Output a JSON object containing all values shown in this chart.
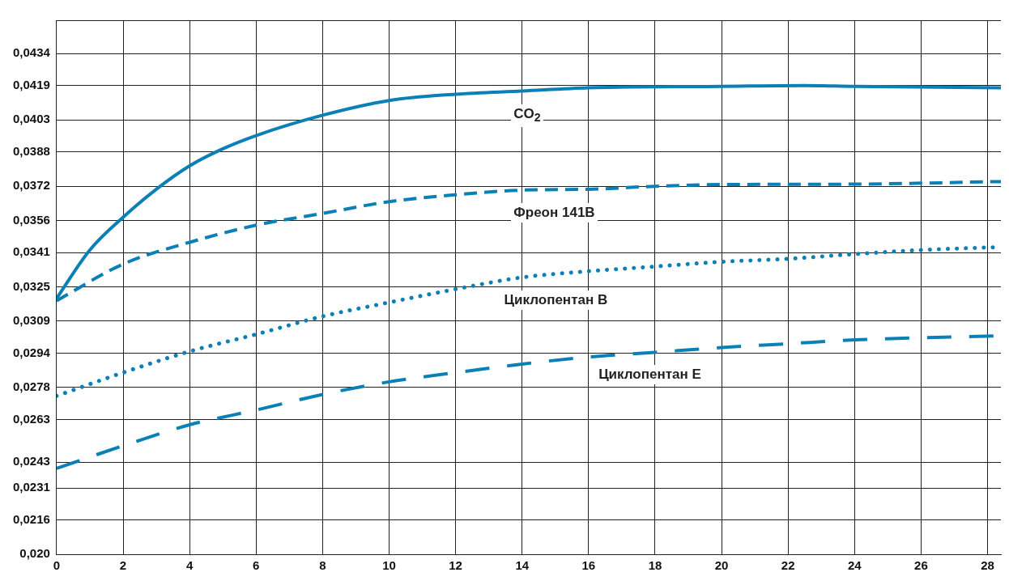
{
  "chart_data": {
    "type": "line",
    "xlim": [
      0,
      28.4
    ],
    "xticks": [
      0,
      2,
      4,
      6,
      8,
      10,
      12,
      14,
      16,
      18,
      20,
      22,
      24,
      26,
      28
    ],
    "ylim": [
      0.02,
      0.04496
    ],
    "yticks": [
      {
        "value": 0.02,
        "label": "0,020"
      },
      {
        "value": 0.0216,
        "label": "0,0216"
      },
      {
        "value": 0.0231,
        "label": "0,0231"
      },
      {
        "value": 0.0243,
        "label": "0,0243"
      },
      {
        "value": 0.0263,
        "label": "0,0263"
      },
      {
        "value": 0.0278,
        "label": "0,0278"
      },
      {
        "value": 0.0294,
        "label": "0,0294"
      },
      {
        "value": 0.0309,
        "label": "0,0309"
      },
      {
        "value": 0.0325,
        "label": "0,0325"
      },
      {
        "value": 0.0341,
        "label": "0,0341"
      },
      {
        "value": 0.0356,
        "label": "0,0356"
      },
      {
        "value": 0.0372,
        "label": "0,0372"
      },
      {
        "value": 0.0388,
        "label": "0,0388"
      },
      {
        "value": 0.0403,
        "label": "0,0403"
      },
      {
        "value": 0.0419,
        "label": "0,0419"
      },
      {
        "value": 0.0434,
        "label": "0,0434"
      },
      {
        "value": 0.04496,
        "label": null
      }
    ],
    "grid": true,
    "legend": false,
    "marker": "none",
    "series": [
      {
        "name": "CO$_{2}$",
        "color": "#0a80b6",
        "line_style": "solid",
        "x": [
          0,
          1,
          2,
          3,
          4,
          5,
          6,
          8,
          10,
          12,
          14,
          16,
          20,
          22.5,
          24,
          28.4
        ],
        "values": [
          0.03196,
          0.03422,
          0.03575,
          0.03706,
          0.03815,
          0.03895,
          0.03957,
          0.04052,
          0.04121,
          0.0415,
          0.04165,
          0.0418,
          0.04187,
          0.04191,
          0.04187,
          0.0418
        ]
      },
      {
        "name": "Фреон 141B",
        "color": "#0a80b6",
        "line_style": "dashed",
        "x": [
          0,
          2,
          4,
          6,
          8,
          10,
          12,
          14,
          16,
          18,
          20,
          24,
          28.4
        ],
        "values": [
          0.03185,
          0.03356,
          0.03458,
          0.03538,
          0.03593,
          0.03648,
          0.0368,
          0.03702,
          0.03706,
          0.0372,
          0.03728,
          0.0373,
          0.03742
        ]
      },
      {
        "name": "Циклопентан B",
        "color": "#0a80b6",
        "line_style": "dotted",
        "x": [
          0,
          2,
          4,
          6,
          8,
          10,
          12,
          14,
          16,
          18,
          20,
          22,
          24,
          26,
          28.4
        ],
        "values": [
          0.0274,
          0.02849,
          0.02948,
          0.03028,
          0.03112,
          0.03177,
          0.03239,
          0.03294,
          0.03323,
          0.03345,
          0.03367,
          0.03381,
          0.03403,
          0.03422,
          0.03436
        ]
      },
      {
        "name": "Циклопентан E",
        "color": "#0a80b6",
        "line_style": "dashed",
        "x": [
          0,
          2,
          4,
          6,
          8,
          10,
          12,
          14,
          16,
          18,
          20,
          22,
          24,
          28.4
        ],
        "values": [
          0.02401,
          0.02507,
          0.02605,
          0.02674,
          0.02747,
          0.02806,
          0.02849,
          0.02889,
          0.02922,
          0.02944,
          0.02966,
          0.02984,
          0.03002,
          0.03021
        ]
      }
    ]
  }
}
